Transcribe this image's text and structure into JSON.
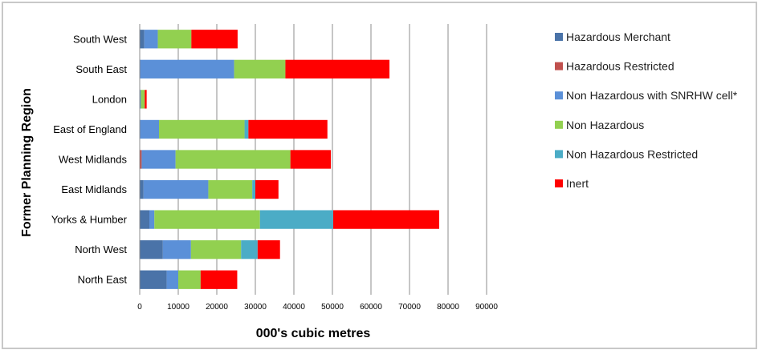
{
  "chart_data": {
    "type": "bar",
    "orientation": "horizontal",
    "stacked": true,
    "title": "",
    "xlabel": "000's cubic metres",
    "ylabel": "Former Planning Region",
    "xlim": [
      0,
      90000
    ],
    "x_ticks": [
      "0",
      "10000",
      "20000",
      "30000",
      "40000",
      "50000",
      "60000",
      "70000",
      "80000",
      "90000"
    ],
    "grid": "vertical major gridlines",
    "legend_position": "right",
    "categories": [
      "South West",
      "South East",
      "London",
      "East of England",
      "West Midlands",
      "East Midlands",
      "Yorks & Humber",
      "North West",
      "North East"
    ],
    "series": [
      {
        "name": "Hazardous Merchant",
        "color": "#4a73a8",
        "values": [
          1200,
          0,
          0,
          0,
          0,
          1000,
          2500,
          6000,
          7000
        ]
      },
      {
        "name": "Hazardous Restricted",
        "color": "#c0504d",
        "values": [
          0,
          0,
          0,
          0,
          500,
          0,
          0,
          0,
          0
        ]
      },
      {
        "name": "Non Hazardous with SNRHW cell*",
        "color": "#5b90d8",
        "values": [
          3500,
          24500,
          300,
          5000,
          8800,
          16800,
          1300,
          7300,
          3000
        ]
      },
      {
        "name": "Non Hazardous",
        "color": "#92d050",
        "values": [
          8700,
          13300,
          1000,
          22200,
          29800,
          11400,
          27400,
          13000,
          5800
        ]
      },
      {
        "name": "Non Hazardous Restricted",
        "color": "#4bacc6",
        "values": [
          0,
          0,
          0,
          1000,
          0,
          800,
          19000,
          4300,
          0
        ]
      },
      {
        "name": "Inert",
        "color": "#ff0000",
        "values": [
          12000,
          27000,
          500,
          20500,
          10500,
          6000,
          27500,
          5800,
          9500
        ]
      }
    ]
  }
}
